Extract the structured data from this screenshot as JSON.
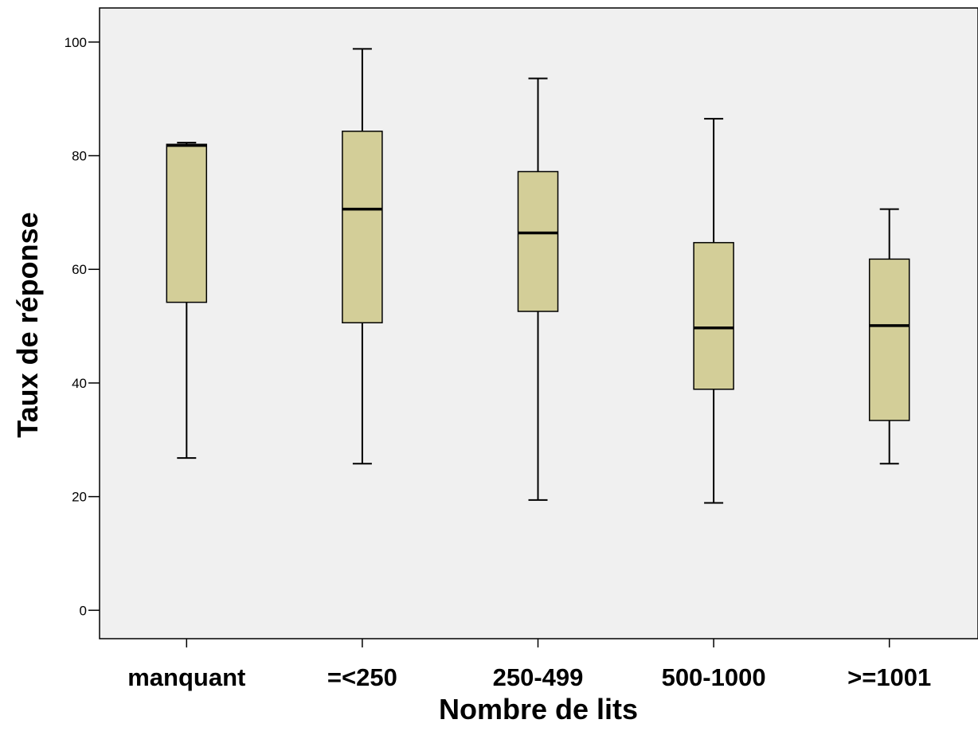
{
  "chart_data": {
    "type": "boxplot",
    "title": "",
    "xlabel": "Nombre de lits",
    "ylabel": "Taux de réponse",
    "ylim": [
      -5,
      106
    ],
    "yticks": [
      0,
      20,
      40,
      60,
      80,
      100
    ],
    "grid": false,
    "colors": {
      "plot_bg": "#f0f0f0",
      "box_fill": "#d3ce98",
      "stroke": "#000000"
    },
    "categories": [
      "manquant",
      "=<250",
      "250-499",
      "500-1000",
      ">=1001"
    ],
    "boxes": [
      {
        "category": "manquant",
        "whisker_low": 26.8,
        "q1": 54.2,
        "median": 81.8,
        "q3": 82.0,
        "whisker_high": 82.3
      },
      {
        "category": "=<250",
        "whisker_low": 25.8,
        "q1": 50.6,
        "median": 70.6,
        "q3": 84.3,
        "whisker_high": 98.8
      },
      {
        "category": "250-499",
        "whisker_low": 19.4,
        "q1": 52.6,
        "median": 66.4,
        "q3": 77.2,
        "whisker_high": 93.6
      },
      {
        "category": "500-1000",
        "whisker_low": 18.9,
        "q1": 38.9,
        "median": 49.7,
        "q3": 64.7,
        "whisker_high": 86.5
      },
      {
        "category": ">=1001",
        "whisker_low": 25.8,
        "q1": 33.4,
        "median": 50.1,
        "q3": 61.8,
        "whisker_high": 70.6
      }
    ]
  }
}
